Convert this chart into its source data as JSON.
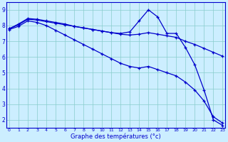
{
  "x": [
    0,
    1,
    2,
    3,
    4,
    5,
    6,
    7,
    8,
    9,
    10,
    11,
    12,
    13,
    14,
    15,
    16,
    17,
    18,
    19,
    20,
    21,
    22,
    23
  ],
  "line_spike": [
    7.8,
    8.1,
    8.45,
    8.4,
    8.3,
    8.2,
    8.1,
    7.95,
    7.85,
    7.75,
    7.65,
    7.55,
    7.5,
    7.6,
    8.3,
    9.0,
    8.55,
    7.5,
    7.5,
    6.6,
    5.5,
    3.9,
    2.0,
    1.65
  ],
  "line_mid": [
    7.8,
    8.05,
    8.4,
    8.35,
    8.25,
    8.15,
    8.05,
    7.95,
    7.85,
    7.75,
    7.65,
    7.55,
    7.45,
    7.4,
    7.45,
    7.55,
    7.45,
    7.35,
    7.25,
    7.0,
    6.8,
    6.55,
    6.3,
    6.05
  ],
  "line_low": [
    7.75,
    7.95,
    8.3,
    8.2,
    8.0,
    7.7,
    7.4,
    7.1,
    6.8,
    6.5,
    6.2,
    5.9,
    5.6,
    5.4,
    5.3,
    5.4,
    5.2,
    5.0,
    4.8,
    4.4,
    3.9,
    3.2,
    2.2,
    1.8
  ],
  "line_color": "#0000cc",
  "bg_color": "#cceeff",
  "grid_color": "#88cccc",
  "xlabel": "Graphe des températures (°c)",
  "yticks": [
    2,
    3,
    4,
    5,
    6,
    7,
    8,
    9
  ],
  "xlim": [
    -0.3,
    23.3
  ],
  "ylim": [
    1.5,
    9.5
  ]
}
